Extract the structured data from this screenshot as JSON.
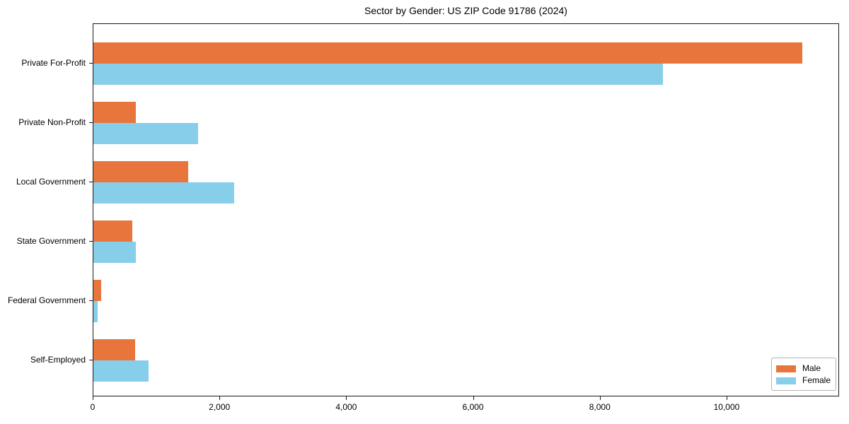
{
  "title": "Sector by Gender: US ZIP Code 91786 (2024)",
  "legend": {
    "position": "lower right",
    "items": [
      {
        "label": "Male",
        "color": "#e8763c"
      },
      {
        "label": "Female",
        "color": "#87ceeb"
      }
    ]
  },
  "chart_data": {
    "type": "bar",
    "orientation": "horizontal",
    "title": "Sector by Gender: US ZIP Code 91786 (2024)",
    "categories": [
      "Private For-Profit",
      "Private Non-Profit",
      "Local Government",
      "State Government",
      "Federal Government",
      "Self-Employed"
    ],
    "series": [
      {
        "name": "Male",
        "color": "#e8763c",
        "values": [
          11200,
          670,
          1495,
          615,
          125,
          660
        ]
      },
      {
        "name": "Female",
        "color": "#87ceeb",
        "values": [
          9000,
          1660,
          2220,
          670,
          65,
          870
        ]
      }
    ],
    "xlabel": "",
    "ylabel": "",
    "x_ticks": [
      0,
      2000,
      4000,
      6000,
      8000,
      10000
    ],
    "x_tick_labels": [
      "0",
      "2,000",
      "4,000",
      "6,000",
      "8,000",
      "10,000"
    ],
    "xlim": [
      0,
      11775
    ],
    "grid": false,
    "frame": true,
    "legend_position": "lower right",
    "colors": {
      "male": "#e8763c",
      "female": "#87ceeb",
      "axis": "#1a1a1a",
      "background": "#ffffff"
    }
  }
}
